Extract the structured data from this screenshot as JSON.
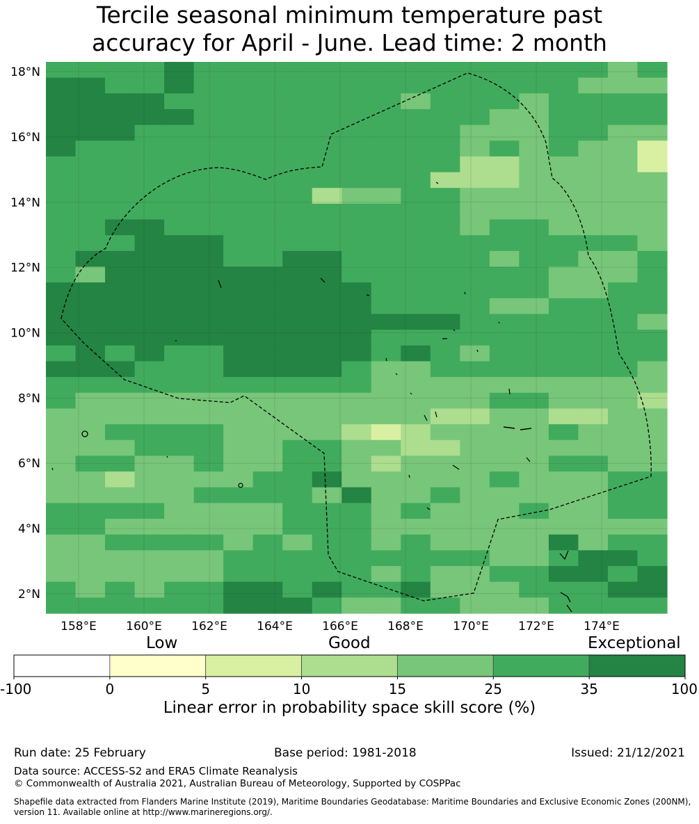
{
  "title": {
    "line1": "Tercile seasonal minimum temperature past",
    "line2": "accuracy for April - June. Lead time: 2 month"
  },
  "map": {
    "lat_labels": [
      "18°N",
      "16°N",
      "14°N",
      "12°N",
      "10°N",
      "8°N",
      "6°N",
      "4°N",
      "2°N"
    ],
    "lon_labels": [
      "158°E",
      "160°E",
      "162°E",
      "164°E",
      "166°E",
      "168°E",
      "170°E",
      "172°E",
      "174°E"
    ],
    "lon_values": [
      158,
      160,
      162,
      164,
      166,
      168,
      170,
      172,
      174
    ],
    "lat_values": [
      18,
      16,
      14,
      12,
      10,
      8,
      6,
      4,
      2
    ],
    "lon_range": [
      157,
      176
    ],
    "lat_range": [
      1.4,
      18.3
    ],
    "colors": {
      "c0": "#fefbc9",
      "c1": "#d9f0a3",
      "c2": "#addd8e",
      "c3": "#78c679",
      "c4": "#41ab5d",
      "c5": "#238443",
      "grid": "#333333",
      "boundary": "#000000"
    },
    "grid_cells": [
      "444454444444444444434",
      "554454444444444444333",
      "555544444444344434444",
      "555554444444444334444",
      "555444444444443334433",
      "544444444444443434331",
      "444444444444442233331",
      "444444444444422233333",
      "444444444233443333333",
      "444444444444443333333",
      "445544444444443443333",
      "444555444444444444443",
      "455555445544444344334",
      "435555555544444443334",
      "555555555554444443344",
      "555555555554444334444",
      "555555555555554444443",
      "555555555554444444444",
      "454544555554543444444",
      "555444555543344444443",
      "444444444443333333333",
      "433333333333333443332",
      "333333333333322332233",
      "334444333321233334333",
      "333444334433223333333",
      "344334334432333334433",
      "332333344533333433344",
      "333334444353343333344",
      "444433334443433343344",
      "443333334443333333333",
      "334444343443433335344",
      "333333444444444334554",
      "333333444443433445545",
      "434344554544533344455",
      "444444555433443334444"
    ],
    "cell_levels": [
      "c0",
      "c1",
      "c2",
      "c3",
      "c4",
      "c5"
    ]
  },
  "colorbar": {
    "categories": [
      "Low",
      "Good",
      "Exceptional"
    ],
    "ticks": [
      "-100",
      "0",
      "5",
      "10",
      "15",
      "25",
      "35",
      "100"
    ],
    "bins": [
      {
        "from": "-100",
        "to": "0",
        "color": "#ffffff"
      },
      {
        "from": "0",
        "to": "5",
        "color": "#ffffcc"
      },
      {
        "from": "5",
        "to": "10",
        "color": "#d9f0a3"
      },
      {
        "from": "10",
        "to": "15",
        "color": "#addd8e"
      },
      {
        "from": "15",
        "to": "25",
        "color": "#78c679"
      },
      {
        "from": "25",
        "to": "35",
        "color": "#41ab5d"
      },
      {
        "from": "35",
        "to": "100",
        "color": "#238443"
      }
    ],
    "title": "Linear error in probability space skill score (%)"
  },
  "footer": {
    "run_date": "Run date: 25 February",
    "base_period": "Base period: 1981-2018",
    "issued": "Issued: 21/12/2021",
    "data_source": "Data source: ACCESS-S2 and ERA5 Climate Reanalysis",
    "copyright": "© Commonwealth of Australia 2021, Australian Bureau of Meteorology, Supported by COSPPac",
    "shapefile_line1": "Shapefile data extracted from Flanders Marine Institute (2019), Maritime Boundaries Geodatabase: Maritime Boundaries and Exclusive Economic Zones (200NM),",
    "shapefile_line2": "version 11. Available online at http://www.marineregions.org/."
  }
}
